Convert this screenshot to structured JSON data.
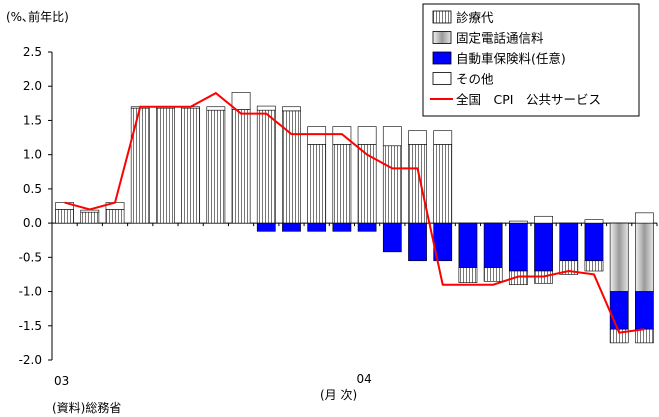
{
  "chart_data": {
    "type": "bar",
    "title": "",
    "unit_label": "(%､前年比)",
    "xlabel": "(月 次)",
    "ylabel": "",
    "source": "(資料)総務省",
    "ylim": [
      -2.0,
      2.5
    ],
    "y_ticks": [
      2.5,
      2.0,
      1.5,
      1.0,
      0.5,
      0.0,
      -0.5,
      -1.0,
      -1.5,
      -2.0
    ],
    "y_tick_labels": [
      "2.5",
      "2.0",
      "1.5",
      "1.0",
      "0.5",
      "0.0",
      "-0.5",
      "-1.0",
      "-1.5",
      "-2.0"
    ],
    "x_year_labels": [
      {
        "index": 0,
        "label": "03"
      },
      {
        "index": 12,
        "label": "04"
      }
    ],
    "categories": [
      "03-01",
      "03-02",
      "03-03",
      "03-04",
      "03-05",
      "03-06",
      "03-07",
      "03-08",
      "03-09",
      "03-10",
      "03-11",
      "03-12",
      "04-01",
      "04-02",
      "04-03",
      "04-04",
      "04-05",
      "04-06",
      "04-07",
      "04-08",
      "04-09",
      "04-10",
      "04-11",
      "04-12"
    ],
    "series": [
      {
        "name": "診療代",
        "pattern": "vstripe",
        "values": [
          0.2,
          0.16,
          0.2,
          1.68,
          1.68,
          1.68,
          1.65,
          1.66,
          1.65,
          1.64,
          1.15,
          1.15,
          1.15,
          1.13,
          1.15,
          1.15,
          0,
          0,
          0,
          0,
          0,
          0,
          0,
          0
        ]
      },
      {
        "name": "固定電話通信料",
        "pattern": "gray",
        "values": [
          0,
          0,
          0,
          0,
          0,
          0,
          0,
          0,
          0,
          0,
          0,
          0,
          0,
          0,
          0,
          0,
          0,
          0,
          0,
          0,
          0,
          0,
          -1.0,
          -1.0
        ]
      },
      {
        "name": "自動車保険料(任意)",
        "pattern": "blue",
        "values": [
          0,
          0,
          0,
          0,
          0,
          0,
          0,
          0,
          -0.12,
          -0.12,
          -0.12,
          -0.12,
          -0.12,
          -0.42,
          -0.55,
          -0.55,
          -0.65,
          -0.65,
          -0.7,
          -0.7,
          -0.55,
          -0.55,
          -0.55,
          -0.55
        ]
      },
      {
        "name": "その他",
        "pattern": "white",
        "values": [
          0.1,
          0.03,
          0.1,
          0.02,
          0.02,
          0.02,
          0.05,
          0.25,
          0.06,
          0.06,
          0.26,
          0.26,
          0.26,
          0.28,
          0.2,
          0.2,
          0,
          0,
          0.03,
          0.1,
          0,
          0.05,
          0,
          0.15
        ]
      }
    ],
    "negative_extra": [
      0,
      0,
      0,
      0,
      0,
      0,
      0,
      0,
      0,
      0,
      0,
      0,
      0,
      0,
      0,
      0,
      -0.22,
      -0.2,
      -0.2,
      -0.18,
      -0.2,
      -0.15,
      -0.2,
      -0.2
    ],
    "line": {
      "name": "全国　CPI　公共サービス",
      "values": [
        0.3,
        0.2,
        0.3,
        1.7,
        1.7,
        1.7,
        1.9,
        1.6,
        1.6,
        1.3,
        1.3,
        1.3,
        1.0,
        0.8,
        0.8,
        -0.9,
        -0.9,
        -0.9,
        -0.78,
        -0.78,
        -0.7,
        -0.75,
        -1.6,
        -1.55
      ]
    },
    "legend_placement": "top-right",
    "grid": false,
    "colors": {
      "blue": "#0000ff",
      "line": "#ff0000",
      "gray": "#a0a0a0"
    }
  }
}
